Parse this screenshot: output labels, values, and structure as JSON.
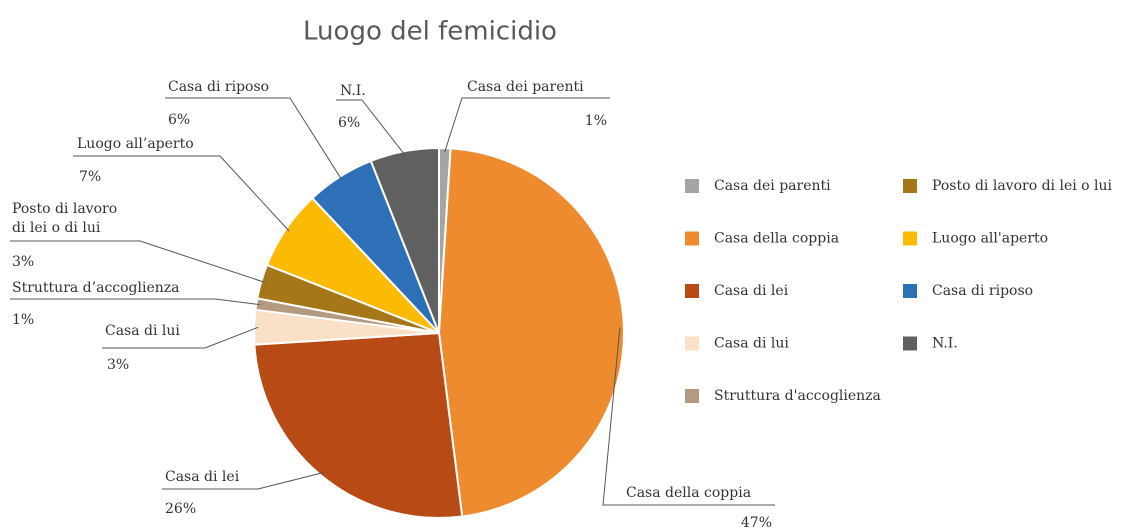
{
  "chart_data": {
    "type": "pie",
    "title": "Luogo del femicidio",
    "categories": [
      "Casa dei parenti",
      "Casa della coppia",
      "Casa di lei",
      "Casa di lui",
      "Struttura d'accoglienza",
      "Posto di lavoro di lei o lui",
      "Luogo all'aperto",
      "Casa di riposo",
      "N.I."
    ],
    "slice_labels": [
      "Casa dei parenti",
      "Casa della coppia",
      "Casa di lei",
      "Casa di lui",
      "Struttura d’accoglienza",
      "Posto di lavoro\ndi lei o di lui",
      "Luogo all’aperto",
      "Casa di riposo",
      "N.I."
    ],
    "values": [
      1,
      47,
      26,
      3,
      1,
      3,
      7,
      6,
      6
    ],
    "value_labels": [
      "1%",
      "47%",
      "26%",
      "3%",
      "1%",
      "3%",
      "7%",
      "6%",
      "6%"
    ],
    "colors": [
      "#a5a5a5",
      "#ed8b2e",
      "#b84a16",
      "#fbe0c8",
      "#b49a80",
      "#a57718",
      "#fbbb05",
      "#2e70b7",
      "#606060"
    ],
    "legend": "right"
  }
}
